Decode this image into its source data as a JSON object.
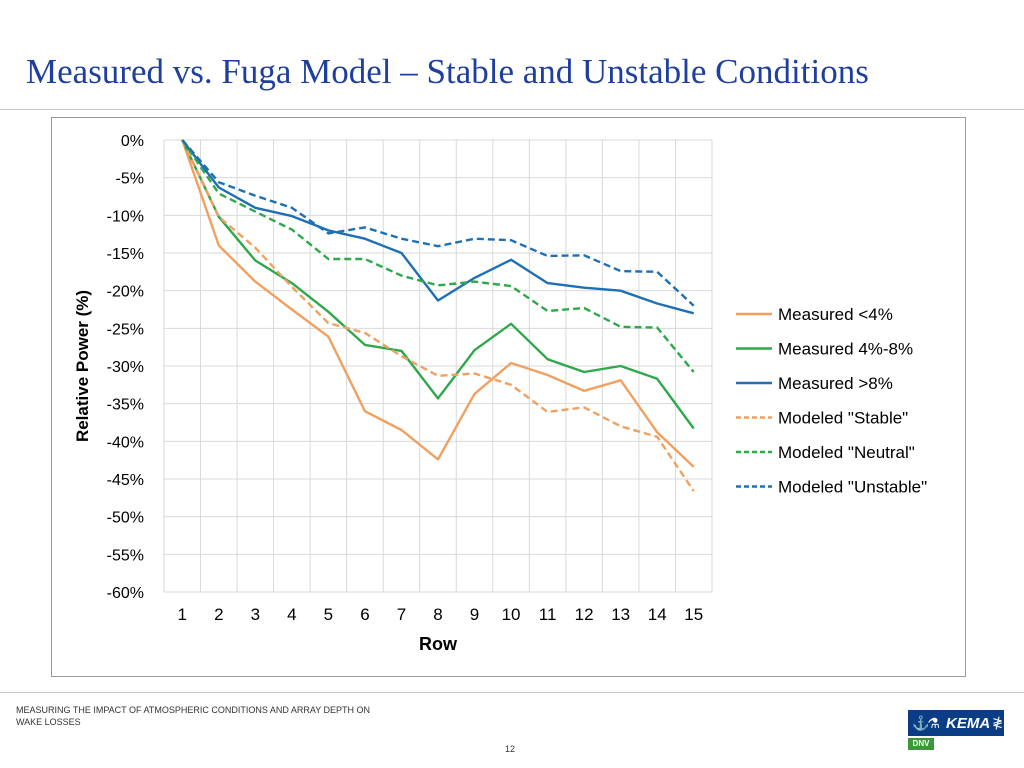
{
  "slide": {
    "title": "Measured vs. Fuga Model – Stable and Unstable Conditions",
    "footer_text": "MEASURING THE IMPACT OF ATMOSPHERIC CONDITIONS AND ARRAY DEPTH ON WAKE LOSSES",
    "page_number": "12",
    "logo": {
      "word": "KEMA",
      "sub": "DNV",
      "icon": "kema-logo-icon"
    }
  },
  "chart_data": {
    "type": "line",
    "title": "",
    "xlabel": "Row",
    "ylabel": "Relative Power  (%)",
    "x": [
      1,
      2,
      3,
      4,
      5,
      6,
      7,
      8,
      9,
      10,
      11,
      12,
      13,
      14,
      15
    ],
    "ylim": [
      -60,
      0
    ],
    "yticks": [
      0,
      -5,
      -10,
      -15,
      -20,
      -25,
      -30,
      -35,
      -40,
      -45,
      -50,
      -55,
      -60
    ],
    "ytick_labels": [
      "0%",
      "-5%",
      "-10%",
      "-15%",
      "-20%",
      "-25%",
      "-30%",
      "-35%",
      "-40%",
      "-45%",
      "-50%",
      "-55%",
      "-60%"
    ],
    "grid": true,
    "legend": "right",
    "series": [
      {
        "name": "Measured <4%",
        "color": "#f0a060",
        "dash": "solid",
        "values": [
          0,
          -14,
          -18.8,
          -22.5,
          -26.1,
          -36,
          -38.5,
          -42.4,
          -33.7,
          -29.6,
          -31.2,
          -33.3,
          -31.9,
          -38.8,
          -43.4
        ]
      },
      {
        "name": "Measured 4%-8%",
        "color": "#2ea84a",
        "dash": "solid",
        "values": [
          0,
          -10.2,
          -16,
          -19,
          -22.8,
          -27.2,
          -28,
          -34.3,
          -27.9,
          -24.4,
          -29.1,
          -30.8,
          -30,
          -31.7,
          -38.3
        ]
      },
      {
        "name": "Measured >8%",
        "color": "#1f6fb4",
        "dash": "solid",
        "values": [
          0,
          -6.3,
          -9,
          -10.1,
          -12,
          -13.1,
          -15,
          -21.3,
          -18.3,
          -15.9,
          -19,
          -19.6,
          -20,
          -21.7,
          -23
        ]
      },
      {
        "name": "Modeled \"Stable\"",
        "color": "#f0a060",
        "dash": "dashed",
        "values": [
          0,
          -10.2,
          -14.3,
          -19.5,
          -24.3,
          -25.6,
          -28.7,
          -31.3,
          -31,
          -32.5,
          -36.1,
          -35.5,
          -38,
          -39.4,
          -46.6
        ]
      },
      {
        "name": "Modeled \"Neutral\"",
        "color": "#2ea84a",
        "dash": "dashed",
        "values": [
          0,
          -7.1,
          -9.5,
          -11.9,
          -15.8,
          -15.8,
          -18,
          -19.3,
          -18.8,
          -19.4,
          -22.7,
          -22.3,
          -24.8,
          -24.9,
          -30.8
        ]
      },
      {
        "name": "Modeled \"Unstable\"",
        "color": "#1f6fb4",
        "dash": "dashed",
        "values": [
          0,
          -5.6,
          -7.4,
          -9,
          -12.4,
          -11.6,
          -13.1,
          -14.1,
          -13.1,
          -13.3,
          -15.4,
          -15.3,
          -17.4,
          -17.5,
          -22
        ]
      }
    ]
  }
}
